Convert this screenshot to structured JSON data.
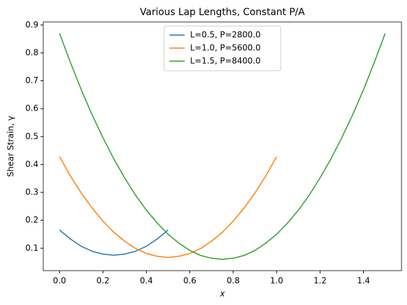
{
  "chart_data": {
    "type": "line",
    "title": "Various Lap Lengths, Constant P/A",
    "xlabel": "x",
    "ylabel": "Shear Strain, γ",
    "xlim": [
      -0.075,
      1.575
    ],
    "ylim": [
      0.0195,
      0.9105
    ],
    "xticks": [
      {
        "value": 0,
        "label": "0.0"
      },
      0.2,
      0.4,
      0.6,
      0.8,
      {
        "value": 1,
        "label": "1.0"
      },
      1.2,
      1.4
    ],
    "yticks": [
      0.1,
      0.2,
      0.3,
      0.4,
      0.5,
      0.6,
      0.7,
      0.8,
      0.9
    ],
    "grid": false,
    "legend": "upper center",
    "series": [
      {
        "name": "L=0.5, P=2800.0",
        "color": "#1f77b4",
        "x": [
          0,
          0.05,
          0.1,
          0.15,
          0.2,
          0.25,
          0.3,
          0.35,
          0.4,
          0.45,
          0.5
        ],
        "values": [
          0.165,
          0.133,
          0.107,
          0.089,
          0.079,
          0.075,
          0.079,
          0.089,
          0.107,
          0.133,
          0.165
        ]
      },
      {
        "name": "L=1.0, P=5600.0",
        "color": "#ff7f0e",
        "x": [
          0,
          0.05,
          0.1,
          0.15,
          0.2,
          0.25,
          0.3,
          0.35,
          0.4,
          0.45,
          0.5,
          0.55,
          0.6,
          0.65,
          0.7,
          0.75,
          0.8,
          0.85,
          0.9,
          0.95,
          1
        ],
        "values": [
          0.428,
          0.359,
          0.298,
          0.244,
          0.197,
          0.157,
          0.125,
          0.099,
          0.081,
          0.071,
          0.067,
          0.071,
          0.081,
          0.099,
          0.125,
          0.157,
          0.197,
          0.244,
          0.298,
          0.359,
          0.428
        ]
      },
      {
        "name": "L=1.5, P=8400.0",
        "color": "#2ca02c",
        "x": [
          0,
          0.05,
          0.1,
          0.15,
          0.2,
          0.25,
          0.3,
          0.35,
          0.4,
          0.45,
          0.5,
          0.55,
          0.6,
          0.65,
          0.7,
          0.75,
          0.8,
          0.85,
          0.9,
          0.95,
          1,
          1.05,
          1.1,
          1.15,
          1.2,
          1.25,
          1.3,
          1.35,
          1.4,
          1.45,
          1.5
        ],
        "values": [
          0.87,
          0.766,
          0.668,
          0.578,
          0.496,
          0.42,
          0.352,
          0.29,
          0.236,
          0.19,
          0.15,
          0.118,
          0.092,
          0.074,
          0.064,
          0.06,
          0.064,
          0.074,
          0.092,
          0.118,
          0.15,
          0.19,
          0.236,
          0.29,
          0.352,
          0.42,
          0.496,
          0.578,
          0.668,
          0.766,
          0.87
        ]
      }
    ]
  }
}
